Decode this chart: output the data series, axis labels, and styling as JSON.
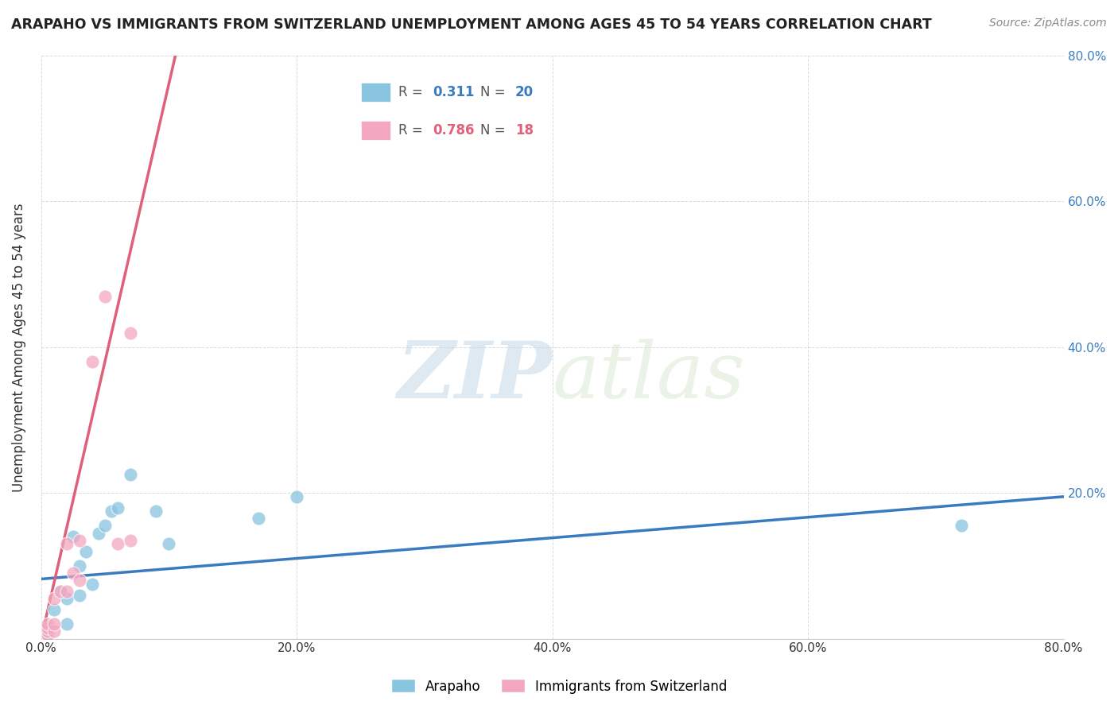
{
  "title": "ARAPAHO VS IMMIGRANTS FROM SWITZERLAND UNEMPLOYMENT AMONG AGES 45 TO 54 YEARS CORRELATION CHART",
  "source": "Source: ZipAtlas.com",
  "ylabel": "Unemployment Among Ages 45 to 54 years",
  "xlim": [
    0.0,
    0.8
  ],
  "ylim": [
    0.0,
    0.8
  ],
  "xticks": [
    0.0,
    0.2,
    0.4,
    0.6,
    0.8
  ],
  "yticks": [
    0.2,
    0.4,
    0.6,
    0.8
  ],
  "xtick_labels": [
    "0.0%",
    "20.0%",
    "40.0%",
    "60.0%",
    "80.0%"
  ],
  "ytick_labels": [
    "20.0%",
    "40.0%",
    "60.0%",
    "80.0%"
  ],
  "blue_r": "0.311",
  "blue_n": "20",
  "pink_r": "0.786",
  "pink_n": "18",
  "blue_color": "#89c4e1",
  "pink_color": "#f4a7c0",
  "blue_line_color": "#3a7bbf",
  "pink_line_color": "#e0607a",
  "watermark_zip": "ZIP",
  "watermark_atlas": "atlas",
  "blue_scatter_x": [
    0.005,
    0.01,
    0.015,
    0.02,
    0.02,
    0.025,
    0.03,
    0.03,
    0.035,
    0.04,
    0.045,
    0.05,
    0.055,
    0.06,
    0.07,
    0.09,
    0.1,
    0.17,
    0.2,
    0.72
  ],
  "blue_scatter_y": [
    0.005,
    0.04,
    0.065,
    0.02,
    0.055,
    0.14,
    0.06,
    0.1,
    0.12,
    0.075,
    0.145,
    0.155,
    0.175,
    0.18,
    0.225,
    0.175,
    0.13,
    0.165,
    0.195,
    0.155
  ],
  "pink_scatter_x": [
    0.005,
    0.005,
    0.005,
    0.005,
    0.01,
    0.01,
    0.01,
    0.015,
    0.02,
    0.02,
    0.025,
    0.03,
    0.03,
    0.04,
    0.05,
    0.06,
    0.07,
    0.07
  ],
  "pink_scatter_y": [
    0.005,
    0.01,
    0.015,
    0.02,
    0.01,
    0.02,
    0.055,
    0.065,
    0.065,
    0.13,
    0.09,
    0.08,
    0.135,
    0.38,
    0.47,
    0.13,
    0.42,
    0.135
  ],
  "background_color": "#ffffff",
  "grid_color": "#cccccc",
  "legend_label_blue": "Arapaho",
  "legend_label_pink": "Immigrants from Switzerland",
  "blue_line_x0": 0.0,
  "blue_line_y0": 0.082,
  "blue_line_x1": 0.8,
  "blue_line_y1": 0.195,
  "pink_line_x0": 0.0,
  "pink_line_y0": 0.0,
  "pink_line_x1": 0.105,
  "pink_line_y1": 0.8
}
